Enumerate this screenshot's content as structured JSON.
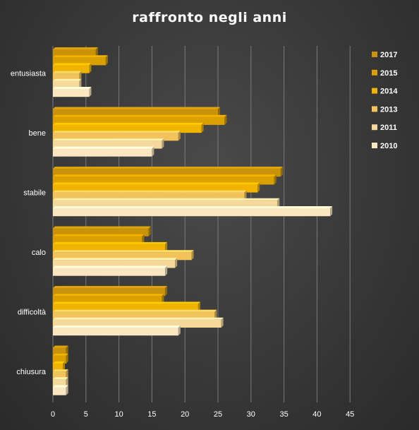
{
  "chart_data": {
    "type": "bar",
    "orientation": "horizontal",
    "style": "3d",
    "title": "raffronto  negli  anni",
    "xlabel": "",
    "ylabel": "",
    "xlim": [
      0,
      45
    ],
    "ticks": [
      0,
      5,
      10,
      15,
      20,
      25,
      30,
      35,
      40,
      45
    ],
    "grid": true,
    "legend_position": "right",
    "categories": [
      "entusiasta",
      "bene",
      "stabile",
      "calo",
      "difficoltà",
      "chiusura"
    ],
    "series": [
      {
        "name": "2017",
        "color": "#c8920a",
        "values": [
          6.5,
          25,
          34.5,
          14.5,
          17,
          2
        ]
      },
      {
        "name": "2015",
        "color": "#daa000",
        "values": [
          8,
          26,
          33.5,
          13.5,
          16.5,
          2
        ]
      },
      {
        "name": "2014",
        "color": "#f0b400",
        "values": [
          5.5,
          22.5,
          31,
          17,
          22,
          1.5
        ]
      },
      {
        "name": "2013",
        "color": "#f2c35a",
        "values": [
          4,
          19,
          29,
          21,
          24.5,
          2
        ]
      },
      {
        "name": "2011",
        "color": "#f5d89c",
        "values": [
          4,
          16.5,
          34,
          18.5,
          25.5,
          2
        ]
      },
      {
        "name": "2010",
        "color": "#fae7c2",
        "values": [
          5.5,
          15,
          42,
          17,
          19,
          2
        ]
      }
    ]
  }
}
